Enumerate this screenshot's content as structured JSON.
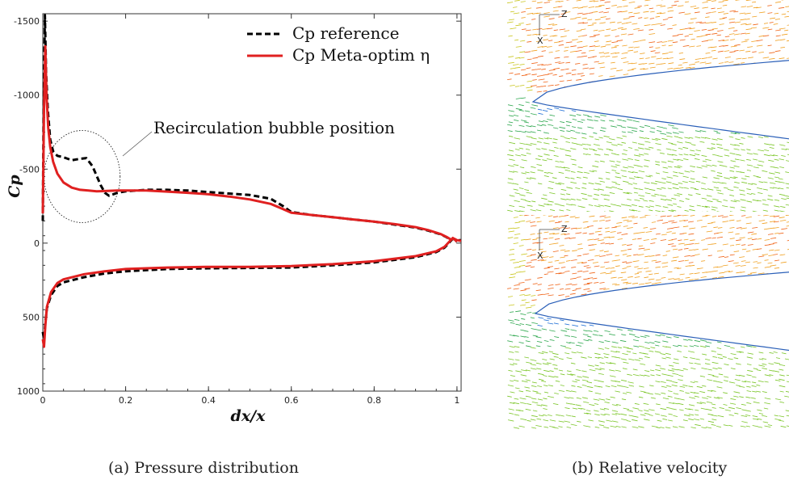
{
  "chart_data": {
    "type": "line",
    "xlabel": "dx/x",
    "ylabel": "Cp",
    "xlim": [
      0,
      1.01
    ],
    "ylim": [
      -1550,
      1000
    ],
    "y_inverted": true,
    "x_ticks": [
      0,
      0.2,
      0.4,
      0.6,
      0.8,
      1
    ],
    "x_tick_labels": [
      "0",
      "0.2",
      "0.4",
      "0.6",
      "0.8",
      "1"
    ],
    "y_ticks": [
      -1500,
      -1000,
      -500,
      0,
      500,
      1000
    ],
    "y_tick_labels": [
      "-1500",
      "-1000",
      "-500",
      "0",
      "500",
      "1000"
    ],
    "grid": false,
    "legend_position": "top-right",
    "annotation": "Recirculation bubble position",
    "series": [
      {
        "name": "Cp reference",
        "color": "#000000",
        "style": "dashed",
        "upper": [
          [
            0,
            -150
          ],
          [
            0.002,
            -900
          ],
          [
            0.005,
            -1540
          ],
          [
            0.008,
            -1150
          ],
          [
            0.012,
            -900
          ],
          [
            0.018,
            -700
          ],
          [
            0.025,
            -620
          ],
          [
            0.035,
            -590
          ],
          [
            0.05,
            -580
          ],
          [
            0.07,
            -560
          ],
          [
            0.09,
            -570
          ],
          [
            0.105,
            -575
          ],
          [
            0.12,
            -520
          ],
          [
            0.14,
            -390
          ],
          [
            0.15,
            -340
          ],
          [
            0.16,
            -320
          ],
          [
            0.18,
            -340
          ],
          [
            0.2,
            -350
          ],
          [
            0.25,
            -360
          ],
          [
            0.3,
            -360
          ],
          [
            0.35,
            -355
          ],
          [
            0.4,
            -345
          ],
          [
            0.45,
            -335
          ],
          [
            0.5,
            -325
          ],
          [
            0.55,
            -300
          ],
          [
            0.58,
            -250
          ],
          [
            0.6,
            -210
          ],
          [
            0.65,
            -190
          ],
          [
            0.7,
            -175
          ],
          [
            0.75,
            -160
          ],
          [
            0.8,
            -145
          ],
          [
            0.85,
            -125
          ],
          [
            0.9,
            -105
          ],
          [
            0.93,
            -85
          ],
          [
            0.96,
            -60
          ],
          [
            0.975,
            -40
          ],
          [
            0.985,
            -20
          ],
          [
            0.99,
            -30
          ],
          [
            1.0,
            -20
          ],
          [
            1.01,
            -20
          ]
        ],
        "lower": [
          [
            0,
            600
          ],
          [
            0.003,
            650
          ],
          [
            0.006,
            540
          ],
          [
            0.01,
            440
          ],
          [
            0.02,
            350
          ],
          [
            0.035,
            290
          ],
          [
            0.05,
            265
          ],
          [
            0.1,
            230
          ],
          [
            0.15,
            205
          ],
          [
            0.2,
            190
          ],
          [
            0.3,
            175
          ],
          [
            0.4,
            170
          ],
          [
            0.5,
            168
          ],
          [
            0.6,
            165
          ],
          [
            0.7,
            150
          ],
          [
            0.8,
            130
          ],
          [
            0.9,
            95
          ],
          [
            0.95,
            60
          ],
          [
            0.97,
            30
          ],
          [
            0.99,
            -30
          ],
          [
            1.0,
            -10
          ]
        ]
      },
      {
        "name": "Cp Meta-optim η",
        "color": "#e02020",
        "style": "solid",
        "upper": [
          [
            0,
            -200
          ],
          [
            0.003,
            -900
          ],
          [
            0.006,
            -1330
          ],
          [
            0.009,
            -1000
          ],
          [
            0.013,
            -780
          ],
          [
            0.018,
            -650
          ],
          [
            0.025,
            -550
          ],
          [
            0.035,
            -470
          ],
          [
            0.05,
            -410
          ],
          [
            0.07,
            -375
          ],
          [
            0.09,
            -360
          ],
          [
            0.11,
            -355
          ],
          [
            0.13,
            -350
          ],
          [
            0.15,
            -352
          ],
          [
            0.18,
            -355
          ],
          [
            0.2,
            -355
          ],
          [
            0.25,
            -355
          ],
          [
            0.3,
            -348
          ],
          [
            0.35,
            -340
          ],
          [
            0.4,
            -330
          ],
          [
            0.45,
            -315
          ],
          [
            0.5,
            -295
          ],
          [
            0.55,
            -265
          ],
          [
            0.58,
            -230
          ],
          [
            0.6,
            -205
          ],
          [
            0.65,
            -190
          ],
          [
            0.7,
            -175
          ],
          [
            0.75,
            -160
          ],
          [
            0.8,
            -145
          ],
          [
            0.85,
            -128
          ],
          [
            0.9,
            -108
          ],
          [
            0.93,
            -88
          ],
          [
            0.96,
            -62
          ],
          [
            0.975,
            -42
          ],
          [
            0.985,
            -25
          ],
          [
            0.993,
            -30
          ],
          [
            1.0,
            -20
          ],
          [
            1.01,
            -15
          ]
        ],
        "lower": [
          [
            0,
            650
          ],
          [
            0.003,
            700
          ],
          [
            0.006,
            560
          ],
          [
            0.01,
            430
          ],
          [
            0.02,
            330
          ],
          [
            0.035,
            270
          ],
          [
            0.05,
            245
          ],
          [
            0.1,
            210
          ],
          [
            0.15,
            190
          ],
          [
            0.2,
            175
          ],
          [
            0.3,
            165
          ],
          [
            0.4,
            160
          ],
          [
            0.5,
            160
          ],
          [
            0.6,
            155
          ],
          [
            0.7,
            142
          ],
          [
            0.8,
            122
          ],
          [
            0.9,
            88
          ],
          [
            0.95,
            55
          ],
          [
            0.97,
            25
          ],
          [
            0.99,
            -35
          ],
          [
            1.0,
            -10
          ]
        ]
      }
    ]
  },
  "captions": {
    "left": "(a) Pressure distribution",
    "right": "(b) Relative velocity"
  },
  "velocity_panels": {
    "axis_triad_labels": [
      "Z",
      "X"
    ],
    "colors": [
      "#1f6fd6",
      "#2fa84f",
      "#7cc62a",
      "#c9c61e",
      "#f0a020",
      "#f06418"
    ]
  }
}
